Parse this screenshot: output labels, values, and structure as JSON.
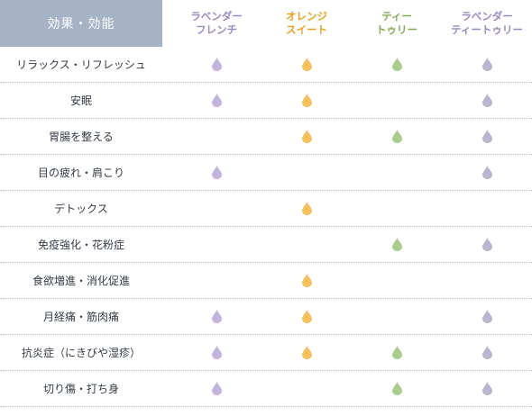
{
  "header": {
    "first_label": "効果・効能",
    "columns": [
      {
        "lines": [
          "ラベンダー",
          "フレンチ"
        ],
        "color": "#9c87c2",
        "key": "lavender_french"
      },
      {
        "lines": [
          "オレンジ",
          "スイート"
        ],
        "color": "#e8a21a",
        "key": "orange_sweet"
      },
      {
        "lines": [
          "ティー",
          "トゥリー"
        ],
        "color": "#7fad52",
        "key": "tea_tree"
      },
      {
        "lines": [
          "ラベンダー",
          "ティートゥリー"
        ],
        "color": "#9c87c2",
        "key": "lavender_tea_tree"
      }
    ]
  },
  "drop_colors": {
    "lavender": "#c3b3de",
    "orange": "#f4bf5d",
    "green": "#a8cd8d",
    "lavender_tea": "#b6b7cf"
  },
  "rows": [
    {
      "label": "リラックス・リフレッシュ",
      "marks": [
        true,
        true,
        true,
        true
      ]
    },
    {
      "label": "安眠",
      "marks": [
        true,
        true,
        false,
        true
      ]
    },
    {
      "label": "胃腸を整える",
      "marks": [
        false,
        true,
        true,
        true
      ]
    },
    {
      "label": "目の疲れ・肩こり",
      "marks": [
        true,
        false,
        false,
        true
      ]
    },
    {
      "label": "デトックス",
      "marks": [
        false,
        true,
        false,
        false
      ]
    },
    {
      "label": "免疫強化・花粉症",
      "marks": [
        false,
        false,
        true,
        true
      ]
    },
    {
      "label": "食欲増進・消化促進",
      "marks": [
        false,
        true,
        false,
        false
      ]
    },
    {
      "label": "月経痛・筋肉痛",
      "marks": [
        true,
        true,
        false,
        true
      ]
    },
    {
      "label": "抗炎症（にきびや湿疹）",
      "marks": [
        true,
        true,
        true,
        true
      ]
    },
    {
      "label": "切り傷・打ち身",
      "marks": [
        true,
        false,
        true,
        true
      ]
    }
  ]
}
